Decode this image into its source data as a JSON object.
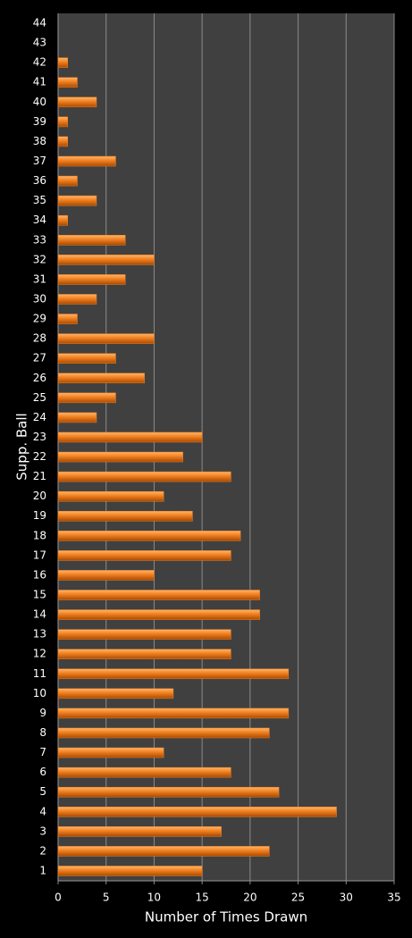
{
  "chart_data": {
    "type": "barh",
    "ylabel": "Supp. Ball",
    "xlabel": "Number of Times Drawn",
    "categories": [
      "1",
      "2",
      "3",
      "4",
      "5",
      "6",
      "7",
      "8",
      "9",
      "10",
      "11",
      "12",
      "13",
      "14",
      "15",
      "16",
      "17",
      "18",
      "19",
      "20",
      "21",
      "22",
      "23",
      "24",
      "25",
      "26",
      "27",
      "28",
      "29",
      "30",
      "31",
      "32",
      "33",
      "34",
      "35",
      "36",
      "37",
      "38",
      "39",
      "40",
      "41",
      "42",
      "43",
      "44"
    ],
    "values": [
      15,
      22,
      17,
      29,
      23,
      18,
      11,
      22,
      24,
      12,
      24,
      18,
      18,
      21,
      21,
      10,
      18,
      19,
      14,
      11,
      18,
      13,
      15,
      4,
      6,
      9,
      6,
      10,
      2,
      4,
      7,
      10,
      7,
      1,
      4,
      2,
      6,
      1,
      1,
      4,
      2,
      1,
      0,
      0
    ],
    "color": "#f07f1e",
    "xlim": [
      0,
      35
    ],
    "xticks": [
      0,
      5,
      10,
      15,
      20,
      25,
      30,
      35
    ],
    "grid": true
  }
}
